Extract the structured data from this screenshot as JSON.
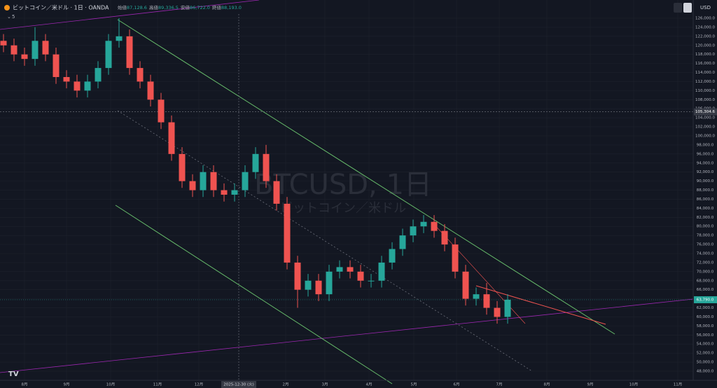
{
  "header": {
    "symbol": "ビットコイン／米ドル · 1日 · OANDA",
    "stats": [
      {
        "label": "始値",
        "value": "87,128.6"
      },
      {
        "label": "高値",
        "value": "89,336.5"
      },
      {
        "label": "安値",
        "value": "86,722.0"
      },
      {
        "label": "終値",
        "value": "88,193.0"
      }
    ],
    "indicator": "5",
    "currency": "USD"
  },
  "watermark": {
    "title": "BTCUSD, 1日",
    "subtitle": "ビットコイン／米ドル"
  },
  "chart_data": {
    "type": "candlestick",
    "up_color": "#26a69a",
    "down_color": "#ef5350",
    "open": [
      121000,
      120000,
      118000,
      117000,
      121000,
      118000,
      113000,
      112000,
      110000,
      112000,
      115000,
      121000,
      122000,
      115000,
      112000,
      108000,
      103000,
      96000,
      90000,
      88000,
      92000,
      88000,
      87000,
      88000,
      92000,
      96000,
      90000,
      85000,
      72000,
      66000,
      68000,
      65000,
      70000,
      71000,
      70000,
      68000,
      68000,
      72000,
      75000,
      78000,
      80000,
      81000,
      79000,
      76000,
      70000,
      64000,
      65000,
      62000,
      60000
    ],
    "high": [
      122500,
      121500,
      119500,
      124000,
      122500,
      119500,
      114500,
      113500,
      113500,
      116500,
      122500,
      126000,
      123500,
      116500,
      113500,
      109500,
      104500,
      97500,
      91500,
      93500,
      93500,
      89500,
      89500,
      93500,
      97500,
      98000,
      91500,
      86500,
      73500,
      69500,
      69500,
      71500,
      72500,
      72500,
      71500,
      69500,
      73500,
      76500,
      79500,
      81500,
      82500,
      82500,
      80500,
      77500,
      71500,
      66500,
      67500,
      63500,
      65000
    ],
    "low": [
      118500,
      116500,
      115500,
      115500,
      116500,
      111500,
      110500,
      108500,
      108500,
      110500,
      113500,
      119500,
      113500,
      110500,
      106500,
      101500,
      94500,
      88500,
      86500,
      86500,
      86500,
      85500,
      85500,
      86500,
      90500,
      88500,
      83500,
      70500,
      62000,
      64500,
      63500,
      63500,
      68500,
      68500,
      66500,
      66500,
      66500,
      70500,
      73500,
      76500,
      78500,
      77500,
      74500,
      68500,
      62500,
      62500,
      60500,
      58500,
      58500
    ],
    "close": [
      120000,
      118000,
      117000,
      121000,
      118000,
      113000,
      112000,
      110000,
      112000,
      115000,
      121000,
      122000,
      115000,
      112000,
      108000,
      103000,
      96000,
      90000,
      88000,
      92000,
      88000,
      87000,
      88000,
      92000,
      96000,
      90000,
      85000,
      72000,
      66000,
      68000,
      65000,
      70000,
      71000,
      70000,
      68000,
      68000,
      72000,
      75000,
      78000,
      80000,
      81000,
      79000,
      76000,
      70000,
      64000,
      65000,
      62000,
      60000,
      63790
    ],
    "last_price": {
      "value": 63790,
      "label": "63,790.0"
    },
    "crosshair_price": {
      "value": 105304.6,
      "label": "105,304.6"
    },
    "crosshair_date": "2025-12-30 (火)",
    "xticks": [
      "8月",
      "9月",
      "10月",
      "11月",
      "12月",
      "2月",
      "3月",
      "4月",
      "5月",
      "6月",
      "7月",
      "8月",
      "9月",
      "10月",
      "11月"
    ],
    "ylim": [
      47000,
      127000
    ],
    "yticks": [
      {
        "value": 48000,
        "label": "48,000.0"
      },
      {
        "value": 50000,
        "label": "50,000.0"
      },
      {
        "value": 52000,
        "label": "52,000.0"
      },
      {
        "value": 54000,
        "label": "54,000.0"
      },
      {
        "value": 56000,
        "label": "56,000.0"
      },
      {
        "value": 58000,
        "label": "58,000.0"
      },
      {
        "value": 60000,
        "label": "60,000.0"
      },
      {
        "value": 62000,
        "label": "62,000.0"
      },
      {
        "value": 64000,
        "label": "64,000.0"
      },
      {
        "value": 66000,
        "label": "66,000.0"
      },
      {
        "value": 68000,
        "label": "68,000.0"
      },
      {
        "value": 70000,
        "label": "70,000.0"
      },
      {
        "value": 72000,
        "label": "72,000.0"
      },
      {
        "value": 74000,
        "label": "74,000.0"
      },
      {
        "value": 76000,
        "label": "76,000.0"
      },
      {
        "value": 78000,
        "label": "78,000.0"
      },
      {
        "value": 80000,
        "label": "80,000.0"
      },
      {
        "value": 82000,
        "label": "82,000.0"
      },
      {
        "value": 84000,
        "label": "84,000.0"
      },
      {
        "value": 86000,
        "label": "86,000.0"
      },
      {
        "value": 88000,
        "label": "88,000.0"
      },
      {
        "value": 90000,
        "label": "90,000.0"
      },
      {
        "value": 92000,
        "label": "92,000.0"
      },
      {
        "value": 94000,
        "label": "94,000.0"
      },
      {
        "value": 96000,
        "label": "96,000.0"
      },
      {
        "value": 98000,
        "label": "98,000.0"
      },
      {
        "value": 100000,
        "label": "100,000.0"
      },
      {
        "value": 102000,
        "label": "102,000.0"
      },
      {
        "value": 104000,
        "label": "104,000.0"
      },
      {
        "value": 106000,
        "label": "106,000.0"
      },
      {
        "value": 108000,
        "label": "108,000.0"
      },
      {
        "value": 110000,
        "label": "110,000.0"
      },
      {
        "value": 112000,
        "label": "112,000.0"
      },
      {
        "value": 114000,
        "label": "114,000.0"
      },
      {
        "value": 116000,
        "label": "116,000.0"
      },
      {
        "value": 118000,
        "label": "118,000.0"
      },
      {
        "value": 120000,
        "label": "120,000.0"
      },
      {
        "value": 122000,
        "label": "122,000.0"
      },
      {
        "value": 124000,
        "label": "124,000.0"
      },
      {
        "value": 126000,
        "label": "126,000.0"
      }
    ]
  }
}
